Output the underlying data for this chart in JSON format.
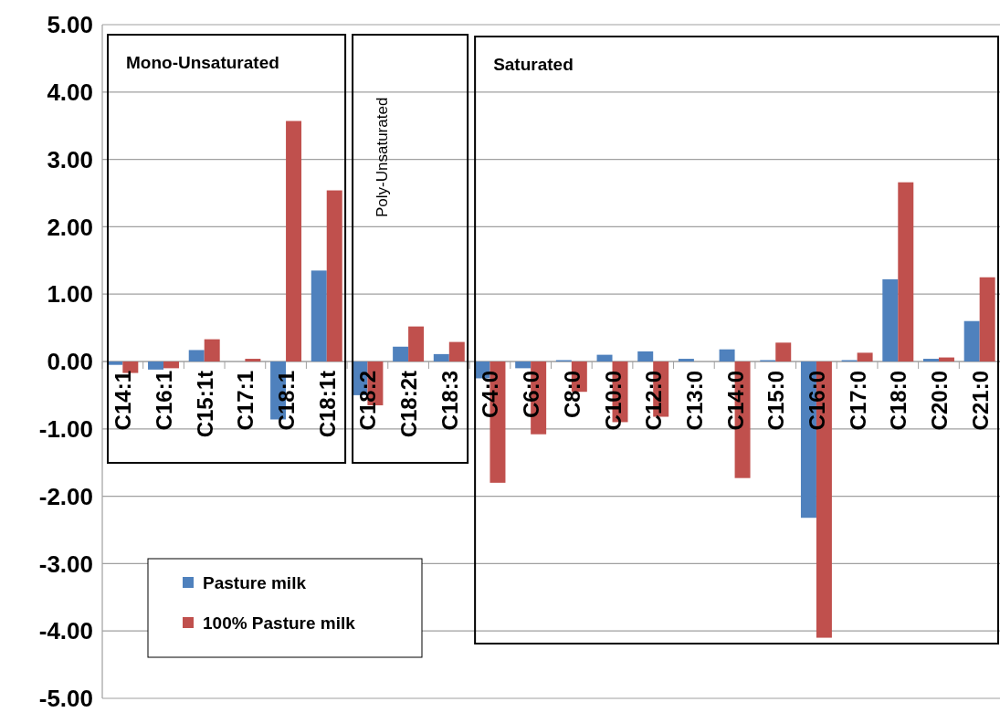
{
  "chart_data": {
    "type": "bar",
    "categories": [
      "C14:1",
      "C16:1",
      "C15:1t",
      "C17:1",
      "C18:1",
      "C18:1t",
      "C18:2",
      "C18:2t",
      "C18:3",
      "C4:0",
      "C6:0",
      "C8:0",
      "C10:0",
      "C12:0",
      "C13:0",
      "C14:0",
      "C15:0",
      "C16:0",
      "C17:0",
      "C18:0",
      "C20:0",
      "C21:0"
    ],
    "series": [
      {
        "name": "Pasture milk",
        "color": "#4f81bd",
        "values": [
          -0.05,
          -0.12,
          0.17,
          0,
          -0.86,
          1.35,
          -0.5,
          0.22,
          0.11,
          -0.25,
          -0.1,
          0.02,
          0.1,
          0.15,
          0.04,
          0.18,
          0.02,
          -2.32,
          0.02,
          1.22,
          0.04,
          0.6
        ]
      },
      {
        "name": "100% Pasture milk",
        "color": "#c0504d",
        "values": [
          -0.17,
          -0.1,
          0.33,
          0.04,
          3.57,
          2.54,
          -0.65,
          0.52,
          0.29,
          -1.8,
          -1.08,
          -0.45,
          -0.9,
          -0.82,
          0,
          -1.73,
          0.28,
          -4.1,
          0.13,
          2.66,
          0.06,
          1.25
        ]
      }
    ],
    "ylim": [
      -5,
      5
    ],
    "yticks": [
      {
        "value": -5,
        "label": "-5.00"
      },
      {
        "value": -4,
        "label": "-4.00"
      },
      {
        "value": -3,
        "label": "-3.00"
      },
      {
        "value": -2,
        "label": "-2.00"
      },
      {
        "value": -1,
        "label": "-1.00"
      },
      {
        "value": 0,
        "label": "0.00"
      },
      {
        "value": 1,
        "label": "1.00"
      },
      {
        "value": 2,
        "label": "2.00"
      },
      {
        "value": 3,
        "label": "3.00"
      },
      {
        "value": 4,
        "label": "4.00"
      },
      {
        "value": 5,
        "label": "5.00"
      }
    ],
    "grid": "y",
    "legend": "bottom left",
    "annotations": [
      "Mono-Unsaturated",
      "Poly-Unsaturated",
      "Saturated"
    ]
  }
}
